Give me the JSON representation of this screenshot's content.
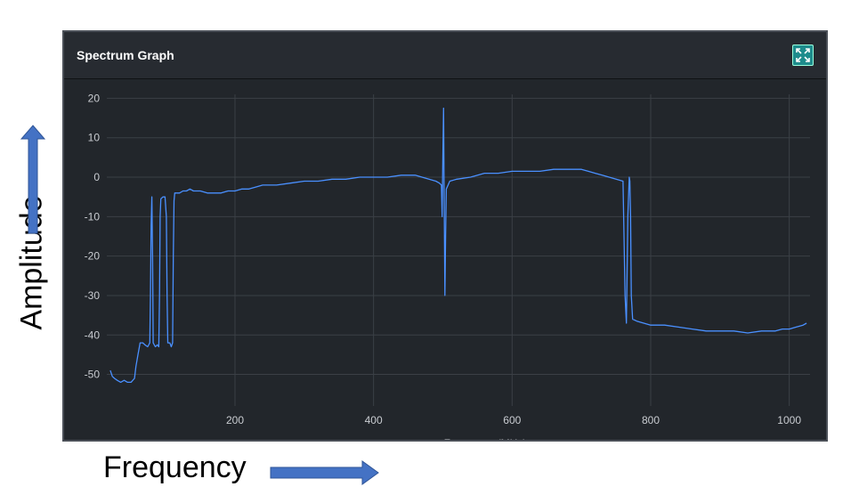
{
  "panel": {
    "title": "Spectrum Graph",
    "expand_icon": "expand-arrows-icon"
  },
  "annotations": {
    "y_caption": "Amplitude",
    "x_caption": "Frequency",
    "arrow_color": "#4472c4"
  },
  "colors": {
    "panel_bg": "#22262b",
    "grid": "#3b4046",
    "line": "#4a90ff",
    "tick_text": "#c9ccd1"
  },
  "chart_data": {
    "type": "line",
    "xlabel": "Frequency (MHz)",
    "ylabel": "",
    "xlim": [
      15,
      1030
    ],
    "ylim": [
      -58,
      21
    ],
    "x_ticks": [
      200,
      400,
      600,
      800,
      1000
    ],
    "y_ticks": [
      20,
      10,
      0,
      -10,
      -20,
      -30,
      -40,
      -50
    ],
    "grid": true,
    "series": [
      {
        "points": [
          [
            20,
            -49
          ],
          [
            23,
            -50.5
          ],
          [
            26,
            -51
          ],
          [
            30,
            -51.5
          ],
          [
            35,
            -52
          ],
          [
            40,
            -51.5
          ],
          [
            45,
            -52
          ],
          [
            50,
            -52
          ],
          [
            55,
            -51
          ],
          [
            57,
            -48
          ],
          [
            60,
            -45
          ],
          [
            63,
            -42
          ],
          [
            67,
            -42
          ],
          [
            70,
            -42.5
          ],
          [
            74,
            -43
          ],
          [
            77,
            -42
          ],
          [
            78,
            -30
          ],
          [
            79,
            -12
          ],
          [
            80,
            -5
          ],
          [
            81,
            -20
          ],
          [
            82,
            -42
          ],
          [
            85,
            -43
          ],
          [
            88,
            -42.5
          ],
          [
            90,
            -43
          ],
          [
            91,
            -30
          ],
          [
            92,
            -10
          ],
          [
            93,
            -5.5
          ],
          [
            96,
            -5
          ],
          [
            99,
            -5
          ],
          [
            101,
            -10
          ],
          [
            102,
            -30
          ],
          [
            103,
            -42
          ],
          [
            106,
            -42
          ],
          [
            108,
            -43
          ],
          [
            110,
            -42
          ],
          [
            111,
            -20
          ],
          [
            112,
            -6
          ],
          [
            113,
            -4
          ],
          [
            116,
            -4
          ],
          [
            120,
            -4
          ],
          [
            125,
            -3.5
          ],
          [
            130,
            -3.5
          ],
          [
            135,
            -3
          ],
          [
            140,
            -3.5
          ],
          [
            150,
            -3.5
          ],
          [
            160,
            -4
          ],
          [
            170,
            -4
          ],
          [
            180,
            -4
          ],
          [
            190,
            -3.5
          ],
          [
            200,
            -3.5
          ],
          [
            210,
            -3
          ],
          [
            220,
            -3
          ],
          [
            230,
            -2.5
          ],
          [
            240,
            -2
          ],
          [
            250,
            -2
          ],
          [
            260,
            -2
          ],
          [
            280,
            -1.5
          ],
          [
            300,
            -1
          ],
          [
            320,
            -1
          ],
          [
            340,
            -0.5
          ],
          [
            360,
            -0.5
          ],
          [
            380,
            0
          ],
          [
            400,
            0
          ],
          [
            420,
            0
          ],
          [
            440,
            0.5
          ],
          [
            460,
            0.5
          ],
          [
            470,
            0
          ],
          [
            480,
            -0.5
          ],
          [
            490,
            -1
          ],
          [
            495,
            -1.5
          ],
          [
            498,
            -2
          ],
          [
            499,
            -10
          ],
          [
            500,
            5
          ],
          [
            501,
            17.5
          ],
          [
            502,
            -5
          ],
          [
            503,
            -30
          ],
          [
            504,
            -15
          ],
          [
            505,
            -3
          ],
          [
            510,
            -1
          ],
          [
            520,
            -0.5
          ],
          [
            540,
            0
          ],
          [
            560,
            1
          ],
          [
            580,
            1
          ],
          [
            600,
            1.5
          ],
          [
            620,
            1.5
          ],
          [
            640,
            1.5
          ],
          [
            660,
            2
          ],
          [
            680,
            2
          ],
          [
            700,
            2
          ],
          [
            710,
            1.5
          ],
          [
            720,
            1
          ],
          [
            730,
            0.5
          ],
          [
            740,
            0
          ],
          [
            750,
            -0.5
          ],
          [
            760,
            -1
          ],
          [
            763,
            -30
          ],
          [
            765,
            -37
          ],
          [
            767,
            -10
          ],
          [
            769,
            0
          ],
          [
            770,
            -1
          ],
          [
            771,
            -10
          ],
          [
            772,
            -30
          ],
          [
            774,
            -36
          ],
          [
            780,
            -36.5
          ],
          [
            790,
            -37
          ],
          [
            800,
            -37.5
          ],
          [
            820,
            -37.5
          ],
          [
            840,
            -38
          ],
          [
            860,
            -38.5
          ],
          [
            880,
            -39
          ],
          [
            900,
            -39
          ],
          [
            920,
            -39
          ],
          [
            940,
            -39.5
          ],
          [
            960,
            -39
          ],
          [
            980,
            -39
          ],
          [
            990,
            -38.5
          ],
          [
            1000,
            -38.5
          ],
          [
            1010,
            -38
          ],
          [
            1020,
            -37.5
          ],
          [
            1025,
            -37
          ]
        ]
      }
    ]
  }
}
